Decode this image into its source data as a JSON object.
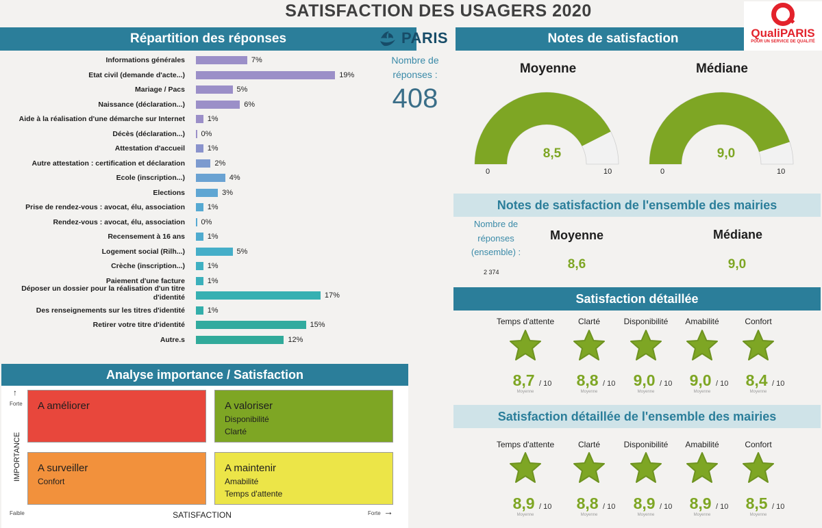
{
  "header": {
    "title": "SATISFACTION DES USAGERS 2020"
  },
  "left_panel": {
    "title": "Répartition des réponses"
  },
  "paris_logo": {
    "text": "PARIS"
  },
  "right_panel": {
    "title": "Notes de satisfaction"
  },
  "quali_logo": {
    "brand": "QualiPARIS",
    "tagline": "POUR UN SERVICE DE QUALITÉ"
  },
  "responses": {
    "label": "Nombre de réponses :",
    "value": "408"
  },
  "chart_data": {
    "type": "bar",
    "orientation": "horizontal",
    "categories": [
      "Informations générales",
      "Etat civil (demande d'acte...)",
      "Mariage / Pacs",
      "Naissance (déclaration...)",
      "Aide à la réalisation d'une démarche sur Internet",
      "Décès (déclaration...)",
      "Attestation d'accueil",
      "Autre attestation : certification et déclaration",
      "Ecole (inscription...)",
      "Elections",
      "Prise de rendez-vous : avocat, élu, association",
      "Rendez-vous : avocat, élu, association",
      "Recensement à 16 ans",
      "Logement social (Rilh...)",
      "Crèche (inscription...)",
      "Paiement d'une facture",
      "Déposer un dossier pour la réalisation d'un titre d'identité",
      "Des renseignements sur les titres d'identité",
      "Retirer votre titre d'identité",
      "Autre.s"
    ],
    "values": [
      7,
      19,
      5,
      6,
      1,
      0,
      1,
      2,
      4,
      3,
      1,
      0,
      1,
      5,
      1,
      1,
      17,
      1,
      15,
      12
    ],
    "labels": [
      "7%",
      "19%",
      "5%",
      "6%",
      "1%",
      "0%",
      "1%",
      "2%",
      "4%",
      "3%",
      "1%",
      "0%",
      "1%",
      "5%",
      "1%",
      "1%",
      "17%",
      "1%",
      "15%",
      "12%"
    ],
    "colors": [
      "#9b8fc8",
      "#9b8fc8",
      "#9b8fc8",
      "#9b8fc8",
      "#9b8fc8",
      "#9b8fc8",
      "#8a93cc",
      "#7c9acf",
      "#6aa2d2",
      "#5fa6d3",
      "#56a9d2",
      "#56a9d2",
      "#4fabcf",
      "#45aec8",
      "#3fb0c2",
      "#3bb0bb",
      "#36b0b2",
      "#33aeaa",
      "#31ab9f",
      "#31aa9a"
    ]
  },
  "gauges": {
    "color": "#7ea624",
    "track_color": "#f2f2f2",
    "min_label": "0",
    "max_label": "10",
    "mean": {
      "title": "Moyenne",
      "value": 8.5,
      "label": "8,5"
    },
    "median": {
      "title": "Médiane",
      "value": 9.0,
      "label": "9,0"
    }
  },
  "ensemble": {
    "title": "Notes de satisfaction de l'ensemble des mairies",
    "resp_label": "Nombre de réponses (ensemble) :",
    "resp_value": "2 374",
    "mean_title": "Moyenne",
    "mean_value": "8,6",
    "median_title": "Médiane",
    "median_value": "9,0"
  },
  "detail": {
    "title": "Satisfaction détaillée",
    "denominator": "/ 10",
    "sublabel": "Moyenne",
    "items": [
      {
        "label": "Temps d'attente",
        "score": "8,7"
      },
      {
        "label": "Clarté",
        "score": "8,8"
      },
      {
        "label": "Disponibilité",
        "score": "9,0"
      },
      {
        "label": "Amabilité",
        "score": "9,0"
      },
      {
        "label": "Confort",
        "score": "8,4"
      }
    ]
  },
  "detail_all": {
    "title": "Satisfaction détaillée de l'ensemble des mairies",
    "items": [
      {
        "label": "Temps d'attente",
        "score": "8,9"
      },
      {
        "label": "Clarté",
        "score": "8,8"
      },
      {
        "label": "Disponibilité",
        "score": "8,9"
      },
      {
        "label": "Amabilité",
        "score": "8,9"
      },
      {
        "label": "Confort",
        "score": "8,5"
      }
    ]
  },
  "matrix": {
    "title": "Analyse importance / Satisfaction",
    "y_axis": "IMPORTANCE",
    "x_axis": "SATISFACTION",
    "y_high": "Forte",
    "x_low": "Faible",
    "x_high": "Forte",
    "quadrants": {
      "ameliorer": {
        "title": "A améliorer",
        "color": "#e8473c",
        "items": []
      },
      "valoriser": {
        "title": "A valoriser",
        "color": "#7ea624",
        "items": [
          "Disponibilité",
          "Clarté"
        ]
      },
      "surveiller": {
        "title": "A surveiller",
        "color": "#f2913c",
        "items": [
          "Confort"
        ]
      },
      "maintenir": {
        "title": "A maintenir",
        "color": "#ece548",
        "items": [
          "Amabilité",
          "Temps d'attente"
        ]
      }
    }
  }
}
